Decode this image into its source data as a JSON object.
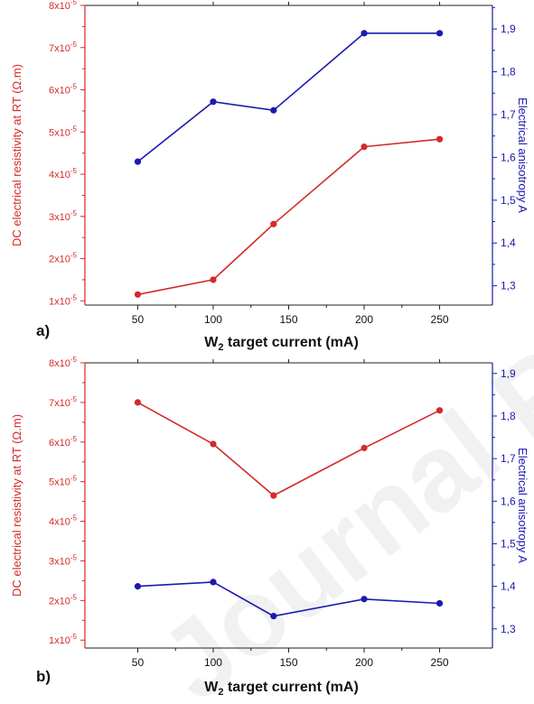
{
  "colors": {
    "series_red": "#d42a2a",
    "series_blue": "#1a1ab0",
    "axis_left": "#d42a2a",
    "axis_right": "#1a1ab0",
    "watermark": "#e6e6e6"
  },
  "watermark_text": "Journal Pre-proof",
  "chart_data": [
    {
      "type": "line",
      "panel_label": "a)",
      "xlabel_main": "W",
      "xlabel_sub": "2",
      "xlabel_rest": " target current (mA)",
      "ylabel": "DC electrical resistivity at RT (Ω.m)",
      "y2label": "Electrical anisotropy A",
      "x": [
        50,
        100,
        140,
        200,
        250
      ],
      "xlim": [
        15,
        285
      ],
      "xticks": [
        "50",
        "100",
        "150",
        "200",
        "250"
      ],
      "ylim": [
        0.9,
        8.0
      ],
      "y_exp": "-5",
      "yticks": [
        "1x10",
        "2x10",
        "3x10",
        "4x10",
        "5x10",
        "6x10",
        "7x10",
        "8x10"
      ],
      "y2lim": [
        1.255,
        1.955
      ],
      "y2ticks": [
        "1,3",
        "1,4",
        "1,5",
        "1,6",
        "1,7",
        "1,8",
        "1,9"
      ],
      "series": [
        {
          "axis": "left",
          "values": [
            1.15,
            1.5,
            2.82,
            4.65,
            4.83
          ]
        },
        {
          "axis": "right",
          "values": [
            1.59,
            1.73,
            1.71,
            1.89,
            1.89
          ]
        }
      ]
    },
    {
      "type": "line",
      "panel_label": "b)",
      "xlabel_main": "W",
      "xlabel_sub": "2",
      "xlabel_rest": " target current (mA)",
      "ylabel": "DC electrical resistivity at RT (Ω.m)",
      "y2label": "Electrical anisotropy A",
      "x": [
        50,
        100,
        140,
        200,
        250
      ],
      "xlim": [
        15,
        285
      ],
      "xticks": [
        "50",
        "100",
        "150",
        "200",
        "250"
      ],
      "ylim": [
        0.8,
        8.0
      ],
      "y_exp": "-5",
      "yticks": [
        "1x10",
        "2x10",
        "3x10",
        "4x10",
        "5x10",
        "6x10",
        "7x10",
        "8x10"
      ],
      "y2lim": [
        1.255,
        1.925
      ],
      "y2ticks": [
        "1,3",
        "1,4",
        "1,5",
        "1,6",
        "1,7",
        "1,8",
        "1,9"
      ],
      "series": [
        {
          "axis": "left",
          "values": [
            7.0,
            5.95,
            4.65,
            5.85,
            6.8
          ]
        },
        {
          "axis": "right",
          "values": [
            1.4,
            1.41,
            1.33,
            1.37,
            1.36
          ]
        }
      ]
    }
  ]
}
